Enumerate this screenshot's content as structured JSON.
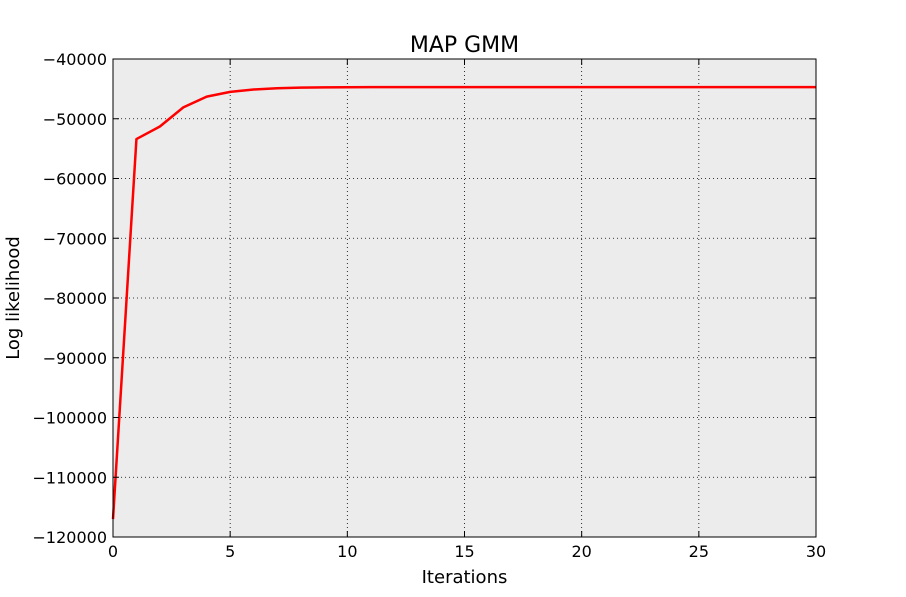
{
  "chart_data": {
    "type": "line",
    "title": "MAP GMM",
    "xlabel": "Iterations",
    "ylabel": "Log likelihood",
    "xlim": [
      0,
      30
    ],
    "ylim": [
      -120000,
      -40000
    ],
    "xticks": [
      "0",
      "5",
      "10",
      "15",
      "20",
      "25",
      "30"
    ],
    "yticks": [
      "−40000",
      "−50000",
      "−60000",
      "−70000",
      "−80000",
      "−90000",
      "−100000",
      "−110000",
      "−120000"
    ],
    "grid": true,
    "background": "#ececec",
    "series": [
      {
        "color": "#ff0000",
        "x": [
          0,
          1,
          2,
          3,
          4,
          5,
          6,
          7,
          8,
          9,
          10,
          11,
          12,
          13,
          14,
          15,
          16,
          17,
          18,
          19,
          20,
          21,
          22,
          23,
          24,
          25,
          26,
          27,
          28,
          29,
          30
        ],
        "y": [
          -117000,
          -53400,
          -51300,
          -48100,
          -46300,
          -45500,
          -45100,
          -44900,
          -44800,
          -44750,
          -44720,
          -44710,
          -44705,
          -44700,
          -44700,
          -44700,
          -44700,
          -44700,
          -44700,
          -44700,
          -44700,
          -44700,
          -44700,
          -44700,
          -44700,
          -44700,
          -44700,
          -44700,
          -44700,
          -44700,
          -44700
        ]
      }
    ]
  }
}
